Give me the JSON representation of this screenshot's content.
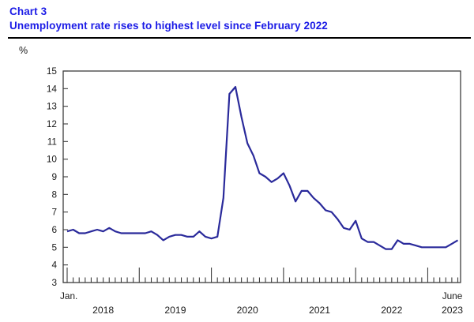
{
  "header": {
    "chart_label": "Chart 3",
    "title": "Unemployment rate rises to highest level since February 2022"
  },
  "theme": {
    "title_color": "#1b1be6",
    "line_color": "#2a2a9b",
    "axis_color": "#3d3d3d",
    "text_color": "#1a1a1a",
    "rule_color": "#000000",
    "background": "#ffffff"
  },
  "chart_data": {
    "type": "line",
    "title": "Unemployment rate rises to highest level since February 2022",
    "unit": "%",
    "frequency": "monthly",
    "x_start": "2018-01",
    "x_end": "2023-06",
    "ylim": [
      3,
      15
    ],
    "grid": false,
    "legend": "none",
    "y_tick_labels": [
      "15",
      "14",
      "13",
      "12",
      "11",
      "10",
      "9",
      "8",
      "7",
      "6",
      "5",
      "4",
      "3"
    ],
    "x_first_tick_label": "Jan.",
    "x_year_labels": [
      "2018",
      "2019",
      "2020",
      "2021",
      "2022"
    ],
    "x_end_label": {
      "month": "June",
      "year": "2023"
    },
    "line_color": "#2a2a9b",
    "series": [
      {
        "name": "Unemployment rate (%)",
        "values": [
          5.9,
          6.0,
          5.8,
          5.8,
          5.9,
          6.0,
          5.9,
          6.1,
          5.9,
          5.8,
          5.8,
          5.8,
          5.8,
          5.8,
          5.9,
          5.7,
          5.4,
          5.6,
          5.7,
          5.7,
          5.6,
          5.6,
          5.9,
          5.6,
          5.5,
          5.6,
          7.8,
          13.7,
          14.1,
          12.4,
          10.9,
          10.2,
          9.2,
          9.0,
          8.7,
          8.9,
          9.2,
          8.5,
          7.6,
          8.2,
          8.2,
          7.8,
          7.5,
          7.1,
          7.0,
          6.6,
          6.1,
          6.0,
          6.5,
          5.5,
          5.3,
          5.3,
          5.1,
          4.9,
          4.9,
          5.4,
          5.2,
          5.2,
          5.1,
          5.0,
          5.0,
          5.0,
          5.0,
          5.0,
          5.2,
          5.4
        ]
      }
    ]
  }
}
